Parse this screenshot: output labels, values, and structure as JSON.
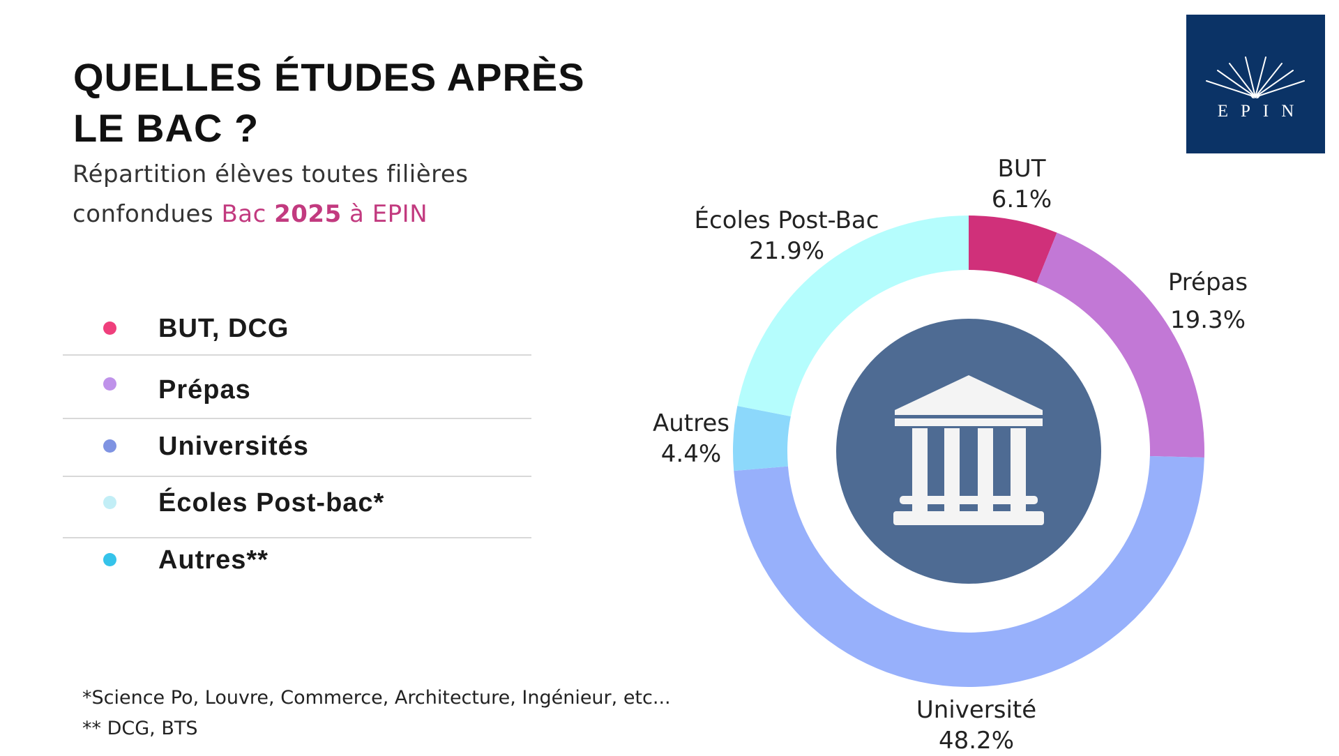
{
  "header": {
    "title_line1": "QUELLES ÉTUDES APRÈS",
    "title_line2": "LE BAC ?",
    "subtitle_line1": "Répartition élèves toutes filières",
    "subtitle_line2_prefix": "confondues ",
    "subtitle_line2_accent_a": "Bac ",
    "subtitle_line2_accent_b": "2025",
    "subtitle_line2_accent_c": " à EPIN"
  },
  "logo": {
    "text": "EPIN",
    "color": "#0b3366"
  },
  "legend": [
    {
      "label": "BUT, DCG",
      "color": "#ef3f7c"
    },
    {
      "label": "Prépas",
      "color": "#bf92ea"
    },
    {
      "label": "Universités",
      "color": "#7f93e2"
    },
    {
      "label": "Écoles Post-bac*",
      "color": "#c2eef6"
    },
    {
      "label": "Autres**",
      "color": "#35c3ea"
    }
  ],
  "footnotes": [
    "*Science Po, Louvre, Commerce, Architecture, Ingénieur, etc...",
    "** DCG, BTS"
  ],
  "chart_data": {
    "type": "pie",
    "subtype": "donut",
    "start": "top, clockwise",
    "slices": [
      {
        "name": "BUT",
        "value": 6.1,
        "label": "6.1%",
        "color": "#d0307a"
      },
      {
        "name": "Prépas",
        "value": 19.3,
        "label": "19.3%",
        "color": "#c278d6"
      },
      {
        "name": "Université",
        "value": 48.2,
        "label": "48.2%",
        "color": "#97b0fb"
      },
      {
        "name": "Autres",
        "value": 4.4,
        "label": "4.4%",
        "color": "#8cd8fb"
      },
      {
        "name": "Écoles Post-Bac",
        "value": 21.9,
        "label": "21.9%",
        "color": "#b5fdfd"
      }
    ],
    "center_icon": "university-building-icon",
    "center_color": "#4e6b93"
  }
}
